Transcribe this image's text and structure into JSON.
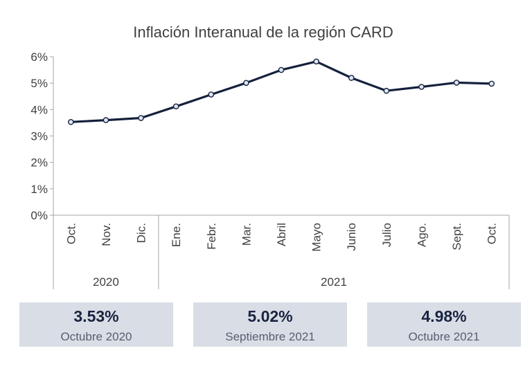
{
  "chart_data": {
    "type": "line",
    "title": "Inflación Interanual de la región CARD",
    "y_tick_labels": [
      "0%",
      "1%",
      "2%",
      "3%",
      "4%",
      "5%",
      "6%"
    ],
    "ylim": [
      0,
      6
    ],
    "categories": [
      "Oct.",
      "Nov.",
      "Dic.",
      "Ene.",
      "Febr.",
      "Mar.",
      "Abril",
      "Mayo",
      "Junio",
      "Julio",
      "Ago.",
      "Sept.",
      "Oct."
    ],
    "groups": [
      {
        "label": "2020",
        "count": 3
      },
      {
        "label": "2021",
        "count": 10
      }
    ],
    "series": [
      {
        "values": [
          3.53,
          3.6,
          3.68,
          4.12,
          4.57,
          5.01,
          5.5,
          5.82,
          5.2,
          4.71,
          4.86,
          5.02,
          4.98
        ],
        "color": "#14213d"
      }
    ],
    "grid": false
  },
  "cards": [
    {
      "value": "3.53%",
      "label": "Octubre 2020"
    },
    {
      "value": "5.02%",
      "label": "Septiembre 2021"
    },
    {
      "value": "4.98%",
      "label": "Octubre 2021"
    }
  ]
}
